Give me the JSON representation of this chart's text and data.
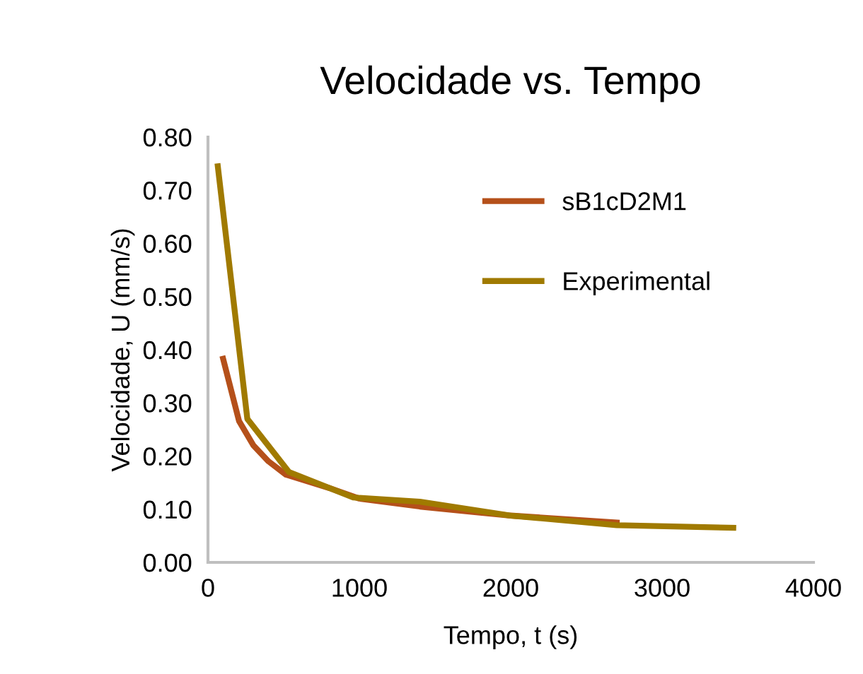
{
  "chart_data": {
    "type": "line",
    "title": "Velocidade vs. Tempo",
    "xlabel": "Tempo, t (s)",
    "ylabel": "Velocidade, U (mm/s)",
    "series": [
      {
        "name": "sB1cD2M1",
        "color": "#b5501a",
        "x": [
          100,
          205,
          300,
          400,
          515,
          800,
          1000,
          1400,
          1750,
          2000,
          2700
        ],
        "values": [
          0.383,
          0.266,
          0.22,
          0.19,
          0.165,
          0.14,
          0.12,
          0.105,
          0.095,
          0.088,
          0.075
        ]
      },
      {
        "name": "Experimental",
        "color": "#a07a00",
        "x": [
          65,
          260,
          535,
          960,
          1400,
          2000,
          2700,
          3470
        ],
        "values": [
          0.745,
          0.27,
          0.17,
          0.122,
          0.114,
          0.088,
          0.07,
          0.065
        ]
      }
    ],
    "xlim": [
      0,
      4000
    ],
    "xticks": [
      0,
      1000,
      2000,
      3000,
      4000
    ],
    "ylim": [
      0,
      0.8
    ],
    "yticks": [
      {
        "value": 0,
        "label": "0.00"
      },
      {
        "value": 0.1,
        "label": "0.10"
      },
      {
        "value": 0.2,
        "label": "0.20"
      },
      {
        "value": 0.3,
        "label": "0.30"
      },
      {
        "value": 0.4,
        "label": "0.40"
      },
      {
        "value": 0.5,
        "label": "0.50"
      },
      {
        "value": 0.6,
        "label": "0.60"
      },
      {
        "value": 0.7,
        "label": "0.70"
      },
      {
        "value": 0.8,
        "label": "0.80"
      }
    ],
    "grid": false,
    "legend": "right",
    "marker": "none",
    "line_style": "solid"
  }
}
